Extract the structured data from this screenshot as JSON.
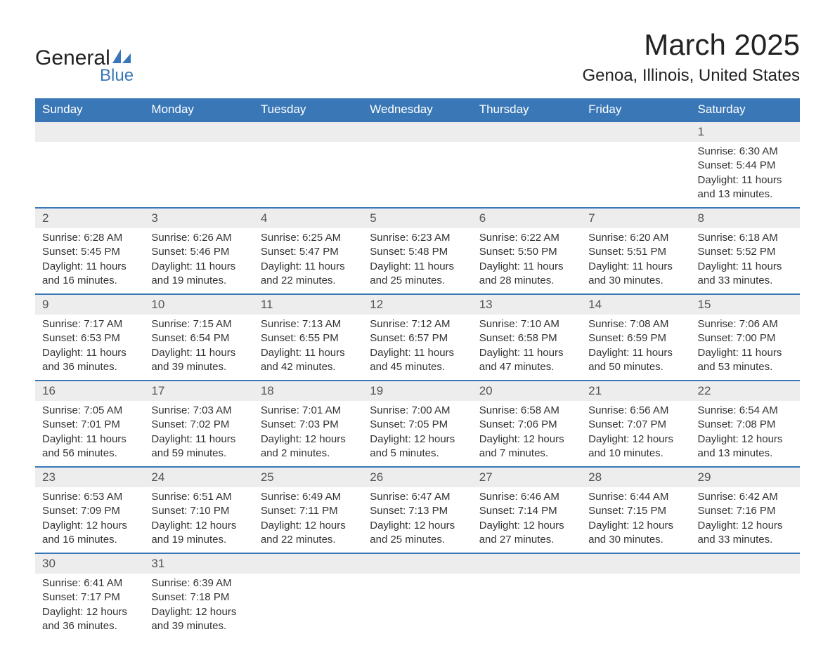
{
  "logo": {
    "top": "General",
    "bottom": "Blue",
    "brand_color": "#3a77b7"
  },
  "title": {
    "month": "March 2025",
    "location": "Genoa, Illinois, United States"
  },
  "colors": {
    "header_bg": "#3a77b7",
    "header_text": "#ffffff",
    "daynum_bg": "#ededed",
    "row_border": "#3a77b7",
    "body_text": "#333333"
  },
  "weekdays": [
    "Sunday",
    "Monday",
    "Tuesday",
    "Wednesday",
    "Thursday",
    "Friday",
    "Saturday"
  ],
  "weeks": [
    [
      null,
      null,
      null,
      null,
      null,
      null,
      {
        "n": "1",
        "sr": "Sunrise: 6:30 AM",
        "ss": "Sunset: 5:44 PM",
        "dl1": "Daylight: 11 hours",
        "dl2": "and 13 minutes."
      }
    ],
    [
      {
        "n": "2",
        "sr": "Sunrise: 6:28 AM",
        "ss": "Sunset: 5:45 PM",
        "dl1": "Daylight: 11 hours",
        "dl2": "and 16 minutes."
      },
      {
        "n": "3",
        "sr": "Sunrise: 6:26 AM",
        "ss": "Sunset: 5:46 PM",
        "dl1": "Daylight: 11 hours",
        "dl2": "and 19 minutes."
      },
      {
        "n": "4",
        "sr": "Sunrise: 6:25 AM",
        "ss": "Sunset: 5:47 PM",
        "dl1": "Daylight: 11 hours",
        "dl2": "and 22 minutes."
      },
      {
        "n": "5",
        "sr": "Sunrise: 6:23 AM",
        "ss": "Sunset: 5:48 PM",
        "dl1": "Daylight: 11 hours",
        "dl2": "and 25 minutes."
      },
      {
        "n": "6",
        "sr": "Sunrise: 6:22 AM",
        "ss": "Sunset: 5:50 PM",
        "dl1": "Daylight: 11 hours",
        "dl2": "and 28 minutes."
      },
      {
        "n": "7",
        "sr": "Sunrise: 6:20 AM",
        "ss": "Sunset: 5:51 PM",
        "dl1": "Daylight: 11 hours",
        "dl2": "and 30 minutes."
      },
      {
        "n": "8",
        "sr": "Sunrise: 6:18 AM",
        "ss": "Sunset: 5:52 PM",
        "dl1": "Daylight: 11 hours",
        "dl2": "and 33 minutes."
      }
    ],
    [
      {
        "n": "9",
        "sr": "Sunrise: 7:17 AM",
        "ss": "Sunset: 6:53 PM",
        "dl1": "Daylight: 11 hours",
        "dl2": "and 36 minutes."
      },
      {
        "n": "10",
        "sr": "Sunrise: 7:15 AM",
        "ss": "Sunset: 6:54 PM",
        "dl1": "Daylight: 11 hours",
        "dl2": "and 39 minutes."
      },
      {
        "n": "11",
        "sr": "Sunrise: 7:13 AM",
        "ss": "Sunset: 6:55 PM",
        "dl1": "Daylight: 11 hours",
        "dl2": "and 42 minutes."
      },
      {
        "n": "12",
        "sr": "Sunrise: 7:12 AM",
        "ss": "Sunset: 6:57 PM",
        "dl1": "Daylight: 11 hours",
        "dl2": "and 45 minutes."
      },
      {
        "n": "13",
        "sr": "Sunrise: 7:10 AM",
        "ss": "Sunset: 6:58 PM",
        "dl1": "Daylight: 11 hours",
        "dl2": "and 47 minutes."
      },
      {
        "n": "14",
        "sr": "Sunrise: 7:08 AM",
        "ss": "Sunset: 6:59 PM",
        "dl1": "Daylight: 11 hours",
        "dl2": "and 50 minutes."
      },
      {
        "n": "15",
        "sr": "Sunrise: 7:06 AM",
        "ss": "Sunset: 7:00 PM",
        "dl1": "Daylight: 11 hours",
        "dl2": "and 53 minutes."
      }
    ],
    [
      {
        "n": "16",
        "sr": "Sunrise: 7:05 AM",
        "ss": "Sunset: 7:01 PM",
        "dl1": "Daylight: 11 hours",
        "dl2": "and 56 minutes."
      },
      {
        "n": "17",
        "sr": "Sunrise: 7:03 AM",
        "ss": "Sunset: 7:02 PM",
        "dl1": "Daylight: 11 hours",
        "dl2": "and 59 minutes."
      },
      {
        "n": "18",
        "sr": "Sunrise: 7:01 AM",
        "ss": "Sunset: 7:03 PM",
        "dl1": "Daylight: 12 hours",
        "dl2": "and 2 minutes."
      },
      {
        "n": "19",
        "sr": "Sunrise: 7:00 AM",
        "ss": "Sunset: 7:05 PM",
        "dl1": "Daylight: 12 hours",
        "dl2": "and 5 minutes."
      },
      {
        "n": "20",
        "sr": "Sunrise: 6:58 AM",
        "ss": "Sunset: 7:06 PM",
        "dl1": "Daylight: 12 hours",
        "dl2": "and 7 minutes."
      },
      {
        "n": "21",
        "sr": "Sunrise: 6:56 AM",
        "ss": "Sunset: 7:07 PM",
        "dl1": "Daylight: 12 hours",
        "dl2": "and 10 minutes."
      },
      {
        "n": "22",
        "sr": "Sunrise: 6:54 AM",
        "ss": "Sunset: 7:08 PM",
        "dl1": "Daylight: 12 hours",
        "dl2": "and 13 minutes."
      }
    ],
    [
      {
        "n": "23",
        "sr": "Sunrise: 6:53 AM",
        "ss": "Sunset: 7:09 PM",
        "dl1": "Daylight: 12 hours",
        "dl2": "and 16 minutes."
      },
      {
        "n": "24",
        "sr": "Sunrise: 6:51 AM",
        "ss": "Sunset: 7:10 PM",
        "dl1": "Daylight: 12 hours",
        "dl2": "and 19 minutes."
      },
      {
        "n": "25",
        "sr": "Sunrise: 6:49 AM",
        "ss": "Sunset: 7:11 PM",
        "dl1": "Daylight: 12 hours",
        "dl2": "and 22 minutes."
      },
      {
        "n": "26",
        "sr": "Sunrise: 6:47 AM",
        "ss": "Sunset: 7:13 PM",
        "dl1": "Daylight: 12 hours",
        "dl2": "and 25 minutes."
      },
      {
        "n": "27",
        "sr": "Sunrise: 6:46 AM",
        "ss": "Sunset: 7:14 PM",
        "dl1": "Daylight: 12 hours",
        "dl2": "and 27 minutes."
      },
      {
        "n": "28",
        "sr": "Sunrise: 6:44 AM",
        "ss": "Sunset: 7:15 PM",
        "dl1": "Daylight: 12 hours",
        "dl2": "and 30 minutes."
      },
      {
        "n": "29",
        "sr": "Sunrise: 6:42 AM",
        "ss": "Sunset: 7:16 PM",
        "dl1": "Daylight: 12 hours",
        "dl2": "and 33 minutes."
      }
    ],
    [
      {
        "n": "30",
        "sr": "Sunrise: 6:41 AM",
        "ss": "Sunset: 7:17 PM",
        "dl1": "Daylight: 12 hours",
        "dl2": "and 36 minutes."
      },
      {
        "n": "31",
        "sr": "Sunrise: 6:39 AM",
        "ss": "Sunset: 7:18 PM",
        "dl1": "Daylight: 12 hours",
        "dl2": "and 39 minutes."
      },
      null,
      null,
      null,
      null,
      null
    ]
  ]
}
